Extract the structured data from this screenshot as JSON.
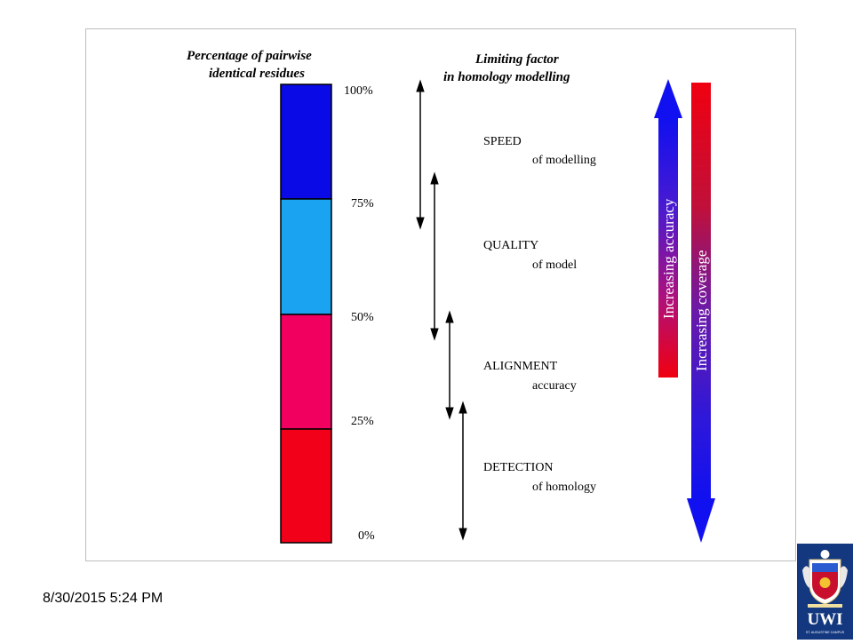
{
  "figure": {
    "header_left": [
      "Percentage of  pairwise",
      "identical residues"
    ],
    "header_right": [
      "Limiting factor",
      "in homology modelling"
    ],
    "percent_ticks": [
      {
        "label": "100%",
        "value": 100
      },
      {
        "label": "75%",
        "value": 75
      },
      {
        "label": "50%",
        "value": 50
      },
      {
        "label": "25%",
        "value": 25
      },
      {
        "label": "0%",
        "value": 0
      }
    ],
    "bands": [
      {
        "from": 75,
        "to": 100,
        "color": "#0a0ae6"
      },
      {
        "from": 50,
        "to": 75,
        "color": "#1aa3f0"
      },
      {
        "from": 25,
        "to": 50,
        "color": "#f2005f"
      },
      {
        "from": 0,
        "to": 25,
        "color": "#f20019"
      }
    ],
    "factors": [
      {
        "title": "SPEED",
        "subtitle": "of modelling"
      },
      {
        "title": "QUALITY",
        "subtitle": "of model"
      },
      {
        "title": "ALIGNMENT",
        "subtitle": "accuracy"
      },
      {
        "title": "DETECTION",
        "subtitle": "of homology"
      }
    ],
    "accuracy_label": "Increasing accuracy",
    "coverage_label": "Increasing coverage"
  },
  "footer": {
    "date": "8/30/2015 5:24 PM",
    "logo_text": "UWI",
    "logo_subtext": "ST. AUGUSTINE CAMPUS"
  },
  "colors": {
    "blue": "#0a0ae6",
    "red": "#f20019",
    "logo_bg": "#14387f"
  }
}
